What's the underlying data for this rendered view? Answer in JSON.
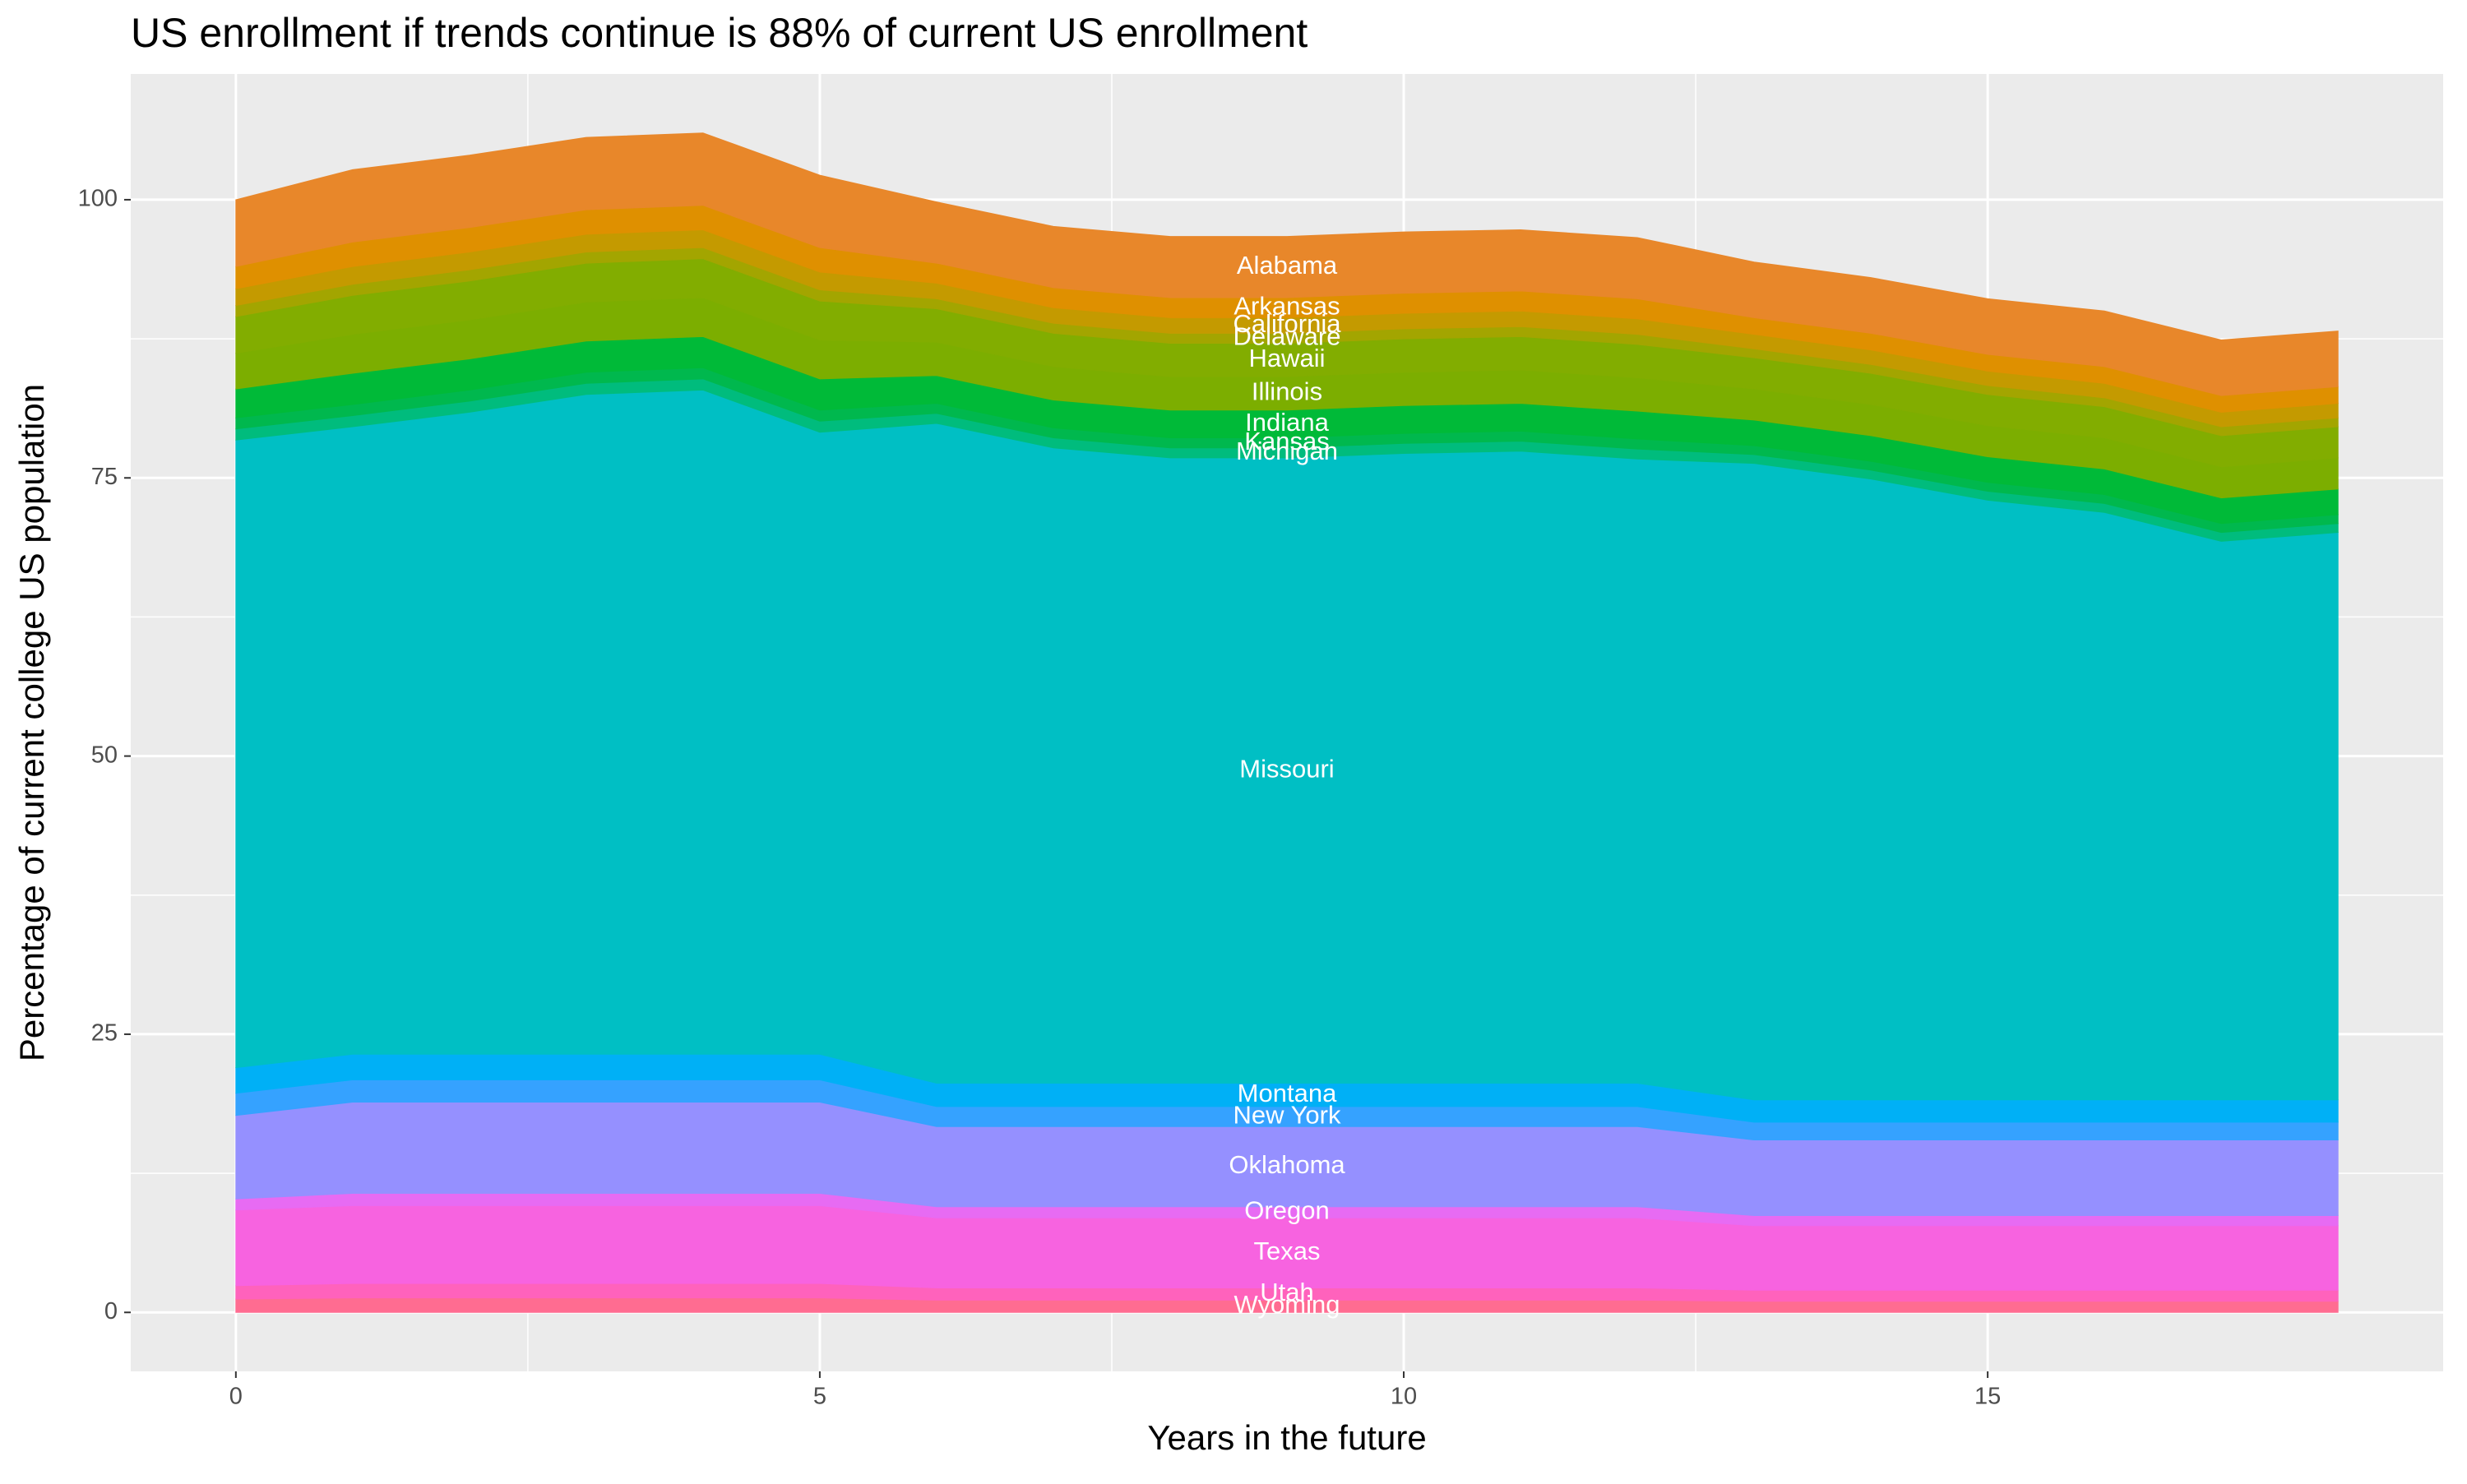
{
  "chart_data": {
    "type": "stacked-area",
    "title": "US enrollment if trends continue is 88% of current US enrollment",
    "x_label": "Years in the future",
    "y_label": "Percentage of current college US population",
    "x": [
      0,
      1,
      2,
      3,
      4,
      5,
      6,
      7,
      8,
      9,
      10,
      11,
      12,
      13,
      14,
      15,
      16,
      17,
      18
    ],
    "xlim": [
      -0.9,
      18.9
    ],
    "xticks": [
      0,
      5,
      10,
      15
    ],
    "ylim": [
      -5.3,
      111.3
    ],
    "yticks": [
      0,
      25,
      50,
      75,
      100
    ],
    "grid": true,
    "series": [
      {
        "name": "Wyoming",
        "color": "#ff6c91",
        "values": [
          1.2,
          1.3,
          1.3,
          1.3,
          1.3,
          1.3,
          1.1,
          1.1,
          1.1,
          1.1,
          1.1,
          1.1,
          1.1,
          1.0,
          1.0,
          1.0,
          1.0,
          1.0,
          1.0
        ]
      },
      {
        "name": "Utah",
        "color": "#ff62bc",
        "values": [
          1.2,
          1.3,
          1.3,
          1.3,
          1.3,
          1.3,
          1.1,
          1.1,
          1.1,
          1.1,
          1.1,
          1.1,
          1.1,
          1.0,
          1.0,
          1.0,
          1.0,
          1.0,
          1.0
        ]
      },
      {
        "name": "Texas",
        "color": "#f763e0",
        "values": [
          6.8,
          7.0,
          7.0,
          7.0,
          7.0,
          7.0,
          6.3,
          6.3,
          6.3,
          6.3,
          6.3,
          6.3,
          6.3,
          5.8,
          5.8,
          5.8,
          5.8,
          5.8,
          5.8
        ]
      },
      {
        "name": "Oregon",
        "color": "#e76bf3",
        "values": [
          1.0,
          1.1,
          1.1,
          1.1,
          1.1,
          1.1,
          1.0,
          1.0,
          1.0,
          1.0,
          1.0,
          1.0,
          1.0,
          0.9,
          0.9,
          0.9,
          0.9,
          0.9,
          0.9
        ]
      },
      {
        "name": "Oklahoma",
        "color": "#9590ff",
        "values": [
          7.5,
          8.2,
          8.2,
          8.2,
          8.2,
          8.2,
          7.2,
          7.2,
          7.2,
          7.2,
          7.2,
          7.2,
          7.2,
          6.8,
          6.8,
          6.8,
          6.8,
          6.8,
          6.8
        ]
      },
      {
        "name": "New York",
        "color": "#35a2ff",
        "values": [
          2.0,
          2.0,
          2.0,
          2.0,
          2.0,
          2.0,
          1.8,
          1.8,
          1.8,
          1.8,
          1.8,
          1.8,
          1.8,
          1.6,
          1.6,
          1.6,
          1.6,
          1.6,
          1.6
        ]
      },
      {
        "name": "Montana",
        "color": "#00b0f6",
        "values": [
          2.3,
          2.3,
          2.3,
          2.3,
          2.3,
          2.3,
          2.1,
          2.1,
          2.1,
          2.1,
          2.1,
          2.1,
          2.1,
          2.0,
          2.0,
          2.0,
          2.0,
          2.0,
          2.0
        ]
      },
      {
        "name": "Missouri",
        "color": "#00bfc4",
        "values": [
          56.4,
          56.4,
          57.7,
          59.3,
          59.7,
          55.9,
          59.3,
          57.1,
          56.2,
          56.2,
          56.6,
          56.8,
          56.1,
          57.2,
          55.8,
          53.9,
          52.8,
          50.2,
          51.0
        ]
      },
      {
        "name": "Michigan",
        "color": "#00bc7d",
        "values": [
          1.0,
          1.0,
          1.0,
          1.0,
          1.0,
          1.0,
          0.9,
          0.9,
          0.9,
          0.9,
          0.9,
          0.9,
          0.9,
          0.8,
          0.8,
          0.8,
          0.8,
          0.8,
          0.8
        ]
      },
      {
        "name": "Kansas",
        "color": "#00b84e",
        "values": [
          1.0,
          1.0,
          1.0,
          1.0,
          1.0,
          1.0,
          0.9,
          0.9,
          0.9,
          0.9,
          0.9,
          0.9,
          0.9,
          0.8,
          0.8,
          0.8,
          0.8,
          0.8,
          0.8
        ]
      },
      {
        "name": "Indiana",
        "color": "#00ba38",
        "values": [
          2.6,
          2.8,
          2.8,
          2.8,
          2.8,
          2.8,
          2.5,
          2.5,
          2.5,
          2.5,
          2.5,
          2.5,
          2.5,
          2.3,
          2.3,
          2.3,
          2.3,
          2.3,
          2.3
        ]
      },
      {
        "name": "Illinois",
        "color": "#7cae00",
        "values": [
          3.2,
          3.5,
          3.5,
          3.5,
          3.5,
          3.5,
          3.0,
          3.0,
          3.0,
          3.0,
          3.0,
          3.0,
          3.0,
          2.8,
          2.8,
          2.8,
          2.8,
          2.8,
          2.8
        ]
      },
      {
        "name": "Hawaii",
        "color": "#82ad00",
        "values": [
          3.3,
          3.5,
          3.5,
          3.5,
          3.5,
          3.5,
          3.0,
          3.0,
          3.0,
          3.0,
          3.0,
          3.0,
          3.0,
          2.8,
          2.8,
          2.8,
          2.8,
          2.8,
          2.8
        ]
      },
      {
        "name": "Delaware",
        "color": "#a3a500",
        "values": [
          1.0,
          1.0,
          1.0,
          1.0,
          1.0,
          1.0,
          0.9,
          0.9,
          0.9,
          0.9,
          0.9,
          0.9,
          0.9,
          0.8,
          0.8,
          0.8,
          0.8,
          0.8,
          0.8
        ]
      },
      {
        "name": "California",
        "color": "#c49a00",
        "values": [
          1.5,
          1.6,
          1.6,
          1.6,
          1.6,
          1.6,
          1.4,
          1.4,
          1.4,
          1.4,
          1.4,
          1.4,
          1.4,
          1.3,
          1.3,
          1.3,
          1.3,
          1.3,
          1.3
        ]
      },
      {
        "name": "Arkansas",
        "color": "#df9000",
        "values": [
          2.0,
          2.2,
          2.2,
          2.2,
          2.2,
          2.2,
          1.8,
          1.8,
          1.8,
          1.8,
          1.8,
          1.8,
          1.8,
          1.5,
          1.5,
          1.5,
          1.5,
          1.5,
          1.5
        ]
      },
      {
        "name": "Alabama",
        "color": "#e8872a",
        "values": [
          6.0,
          6.5,
          6.5,
          6.5,
          6.5,
          6.5,
          5.5,
          5.5,
          5.5,
          5.5,
          5.5,
          5.5,
          5.5,
          5.0,
          5.0,
          5.0,
          5.0,
          5.0,
          5.0
        ]
      }
    ]
  }
}
